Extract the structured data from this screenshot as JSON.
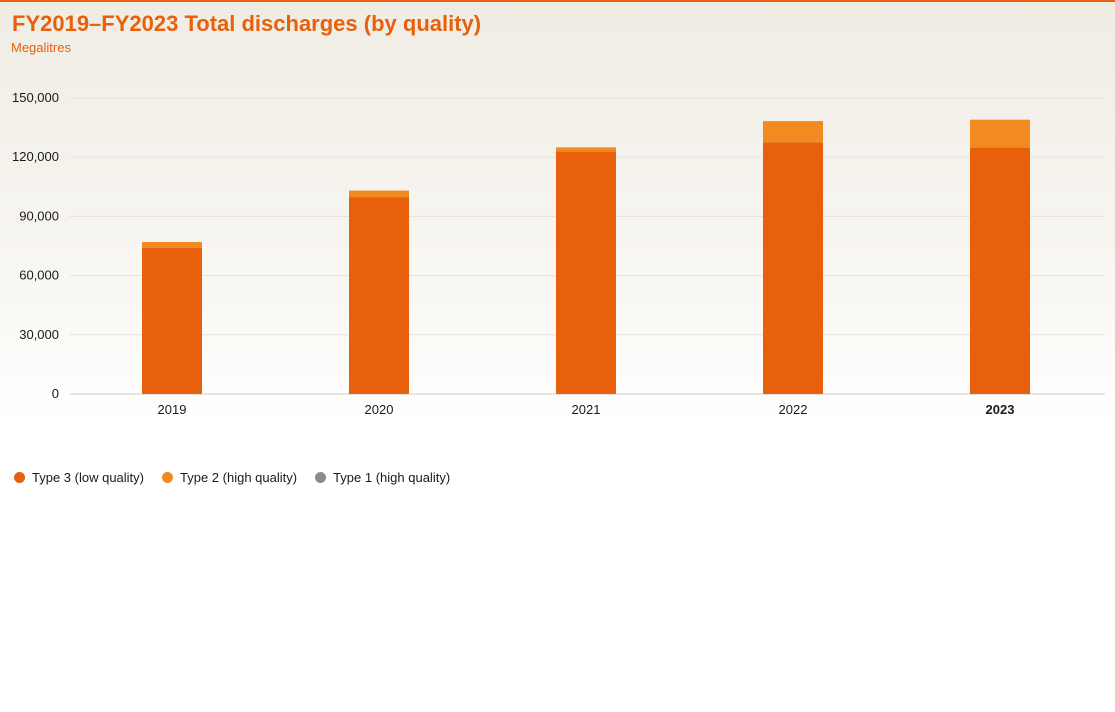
{
  "chart_data": {
    "type": "bar",
    "stacked": true,
    "title": "FY2019–FY2023 Total discharges (by quality)",
    "subtitle": "Megalitres",
    "categories": [
      "2019",
      "2020",
      "2021",
      "2022",
      "2023"
    ],
    "highlight_category": "2023",
    "ylim": [
      0,
      150000
    ],
    "yticks": [
      0,
      30000,
      60000,
      90000,
      120000,
      150000
    ],
    "ytick_labels": [
      "0",
      "30,000",
      "60,000",
      "90,000",
      "120,000",
      "150,000"
    ],
    "grid": true,
    "legend_position": "bottom-left",
    "series": [
      {
        "name": "Type 3 (low quality)",
        "color": "#e8600c",
        "values": [
          74000,
          99800,
          123000,
          127500,
          125000
        ]
      },
      {
        "name": "Type 2 (high quality)",
        "color": "#f28a22",
        "values": [
          3000,
          3300,
          2000,
          10800,
          14000
        ]
      },
      {
        "name": "Type 1 (high quality)",
        "color": "#8c8c8c",
        "values": [
          0,
          0,
          0,
          0,
          0
        ]
      }
    ]
  }
}
